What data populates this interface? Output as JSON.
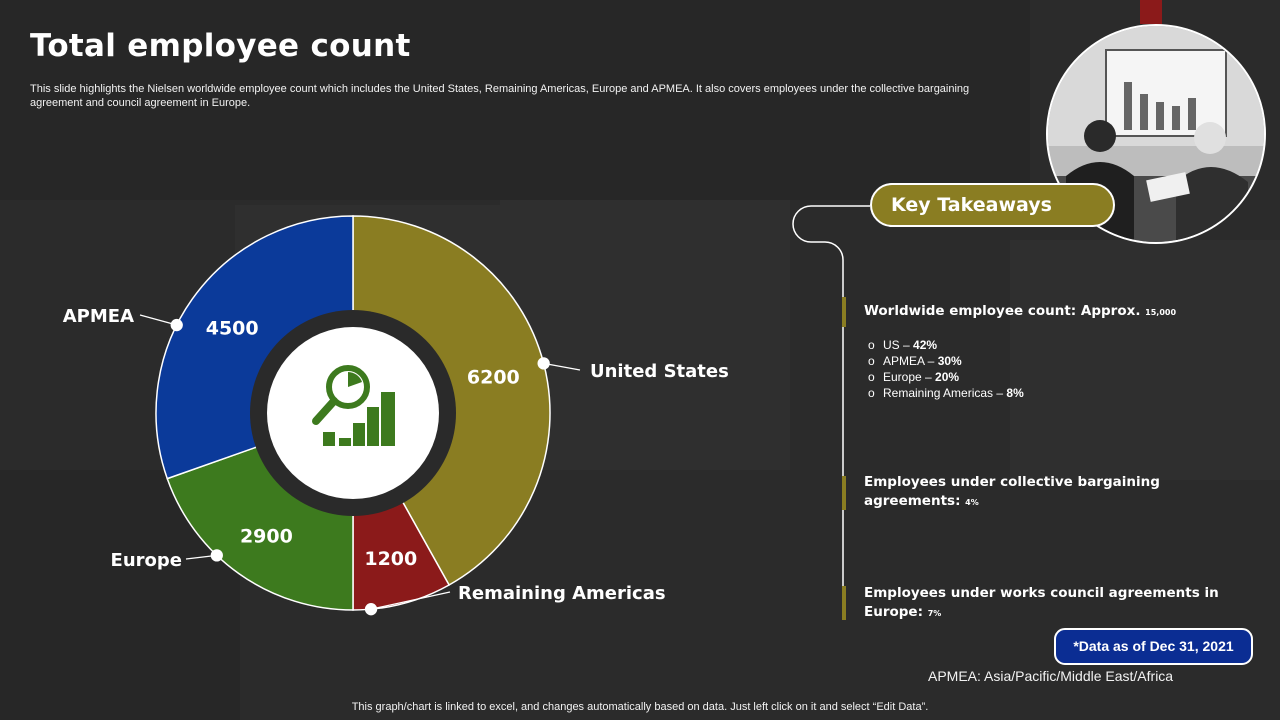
{
  "slide": {
    "title": "Total employee count",
    "description": "This slide highlights the Nielsen worldwide employee count which includes the United States, Remaining Americas, Europe and APMEA. It also covers employees under the collective bargaining agreement and council agreement in Europe.",
    "footer": "This graph/chart is linked to excel, and changes automatically based on data. Just left click on it and select “Edit Data”.",
    "data_note": "*Data as of Dec 31, 2021",
    "abbreviation": "APMEA: Asia/Pacific/Middle East/Africa"
  },
  "chart_data": {
    "type": "pie",
    "categories": [
      "United States",
      "Remaining Americas",
      "Europe",
      "APMEA"
    ],
    "values": [
      6200,
      1200,
      2900,
      4500
    ],
    "colors": [
      "#8a7d22",
      "#8b1a1a",
      "#3d7a1e",
      "#0b3a9a"
    ],
    "center_icon": "magnifier-chart-icon"
  },
  "takeaways": {
    "title": "Key Takeaways",
    "items": [
      {
        "label": "Worldwide employee count: Approx.",
        "value": "15,000"
      },
      {
        "label": "Employees under collective bargaining agreements:",
        "value": "4%"
      },
      {
        "label": "Employees under works council agreements in Europe:",
        "value": "7%"
      }
    ],
    "breakdown": [
      {
        "label": "US –",
        "value": "42%"
      },
      {
        "label": "APMEA –",
        "value": "30%"
      },
      {
        "label": "Europe –",
        "value": "20%"
      },
      {
        "label": "Remaining Americas –",
        "value": "8%"
      }
    ],
    "bullet": "o"
  },
  "photo": {
    "icon": "business-meeting-photo"
  }
}
